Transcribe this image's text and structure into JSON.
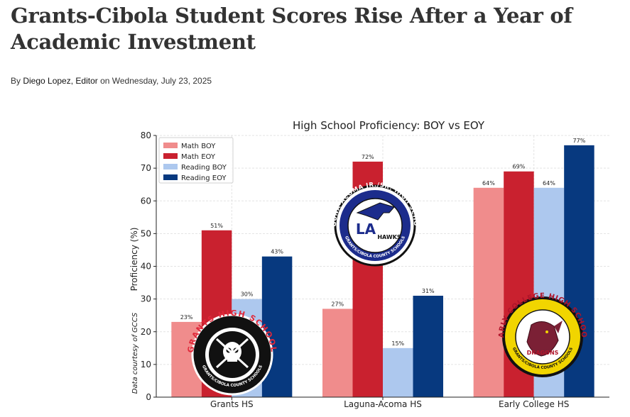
{
  "article": {
    "headline": "Grants-Cibola Student Scores Rise After a Year of Academic Investment",
    "byline_prefix": "By ",
    "author": "Diego Lopez, Editor",
    "byline_on": " on ",
    "date": "Wednesday, July 23, 2025"
  },
  "chart_data": {
    "type": "bar",
    "title": "High School Proficiency: BOY vs EOY",
    "xlabel": "",
    "ylabel": "Proficiency (%)",
    "ylim": [
      0,
      80
    ],
    "yticks": [
      0,
      10,
      20,
      30,
      40,
      50,
      60,
      70,
      80
    ],
    "grid": true,
    "legend_position": "top-left",
    "categories": [
      "Grants HS",
      "Laguna-Acoma HS",
      "Early College HS"
    ],
    "series": [
      {
        "name": "Math BOY",
        "color": "#f08c8c",
        "values": [
          23,
          27,
          64
        ],
        "labels": [
          "23%",
          "27%",
          "64%"
        ]
      },
      {
        "name": "Math EOY",
        "color": "#c9212f",
        "values": [
          51,
          72,
          69
        ],
        "labels": [
          "51%",
          "72%",
          "69%"
        ]
      },
      {
        "name": "Reading BOY",
        "color": "#adc8ee",
        "values": [
          30,
          15,
          64
        ],
        "labels": [
          "30%",
          "15%",
          "64%"
        ]
      },
      {
        "name": "Reading EOY",
        "color": "#07397f",
        "values": [
          43,
          31,
          77
        ],
        "labels": [
          "43%",
          "31%",
          "77%"
        ]
      }
    ],
    "annotation": "Data courtesy of GCCS"
  },
  "logos": [
    {
      "name": "grants-hs-logo",
      "ring_text": "GRANTS HIGH SCHOOL",
      "sub_text": "GRANTS/CIBOLA COUNTY SCHOOLS"
    },
    {
      "name": "laguna-acoma-logo",
      "ring_text": "LAGUNA-ACOMA JR./SR. HIGH SCHOOL",
      "center_text": "HAWKS",
      "sub_text": "GRANTS/CIBOLA COUNTY SCHOOLS"
    },
    {
      "name": "early-college-logo",
      "ring_text": "EARLY COLLEGE HIGH SCHOOL",
      "center_text": "DRAGONS",
      "sub_text": "GRANTS/CIBOLA COUNTY SCHOOLS"
    }
  ]
}
